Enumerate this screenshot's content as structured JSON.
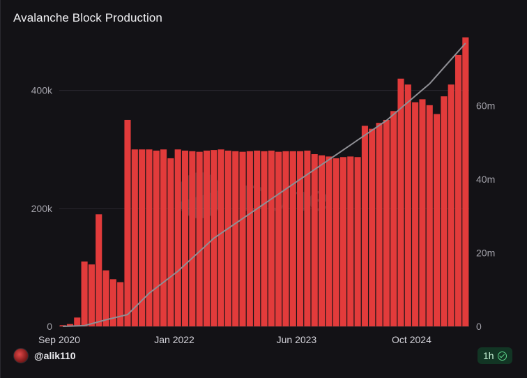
{
  "title": "Avalanche Block Production",
  "author": "@alik110",
  "refresh_badge": "1h",
  "watermark": "Dune",
  "colors": {
    "bar": "#e23b3b",
    "line": "#8f8f95",
    "grid": "#2b2a31",
    "background": "#131216"
  },
  "chart_data": {
    "type": "bar",
    "title": "Avalanche Block Production",
    "xlabel": "",
    "ylabel": "",
    "y2label": "",
    "x_tick_labels": [
      "Sep 2020",
      "Jan 2022",
      "Jun 2023",
      "Oct 2024"
    ],
    "y_left_ticks": [
      "0",
      "200k",
      "400k"
    ],
    "y_right_ticks": [
      "0",
      "20m",
      "40m",
      "60m"
    ],
    "ylim_left": [
      0,
      480000
    ],
    "ylim_right": [
      0,
      77000000
    ],
    "x_range": [
      "2020-09",
      "2025-05"
    ],
    "grid": "horizontal",
    "legend": "none",
    "series": [
      {
        "type": "bar",
        "axis": "left",
        "x": [
          "2020-09",
          "2020-10",
          "2020-11",
          "2020-12",
          "2021-01",
          "2021-02",
          "2021-03",
          "2021-04",
          "2021-05",
          "2021-06",
          "2021-07",
          "2021-08",
          "2021-09",
          "2021-10",
          "2021-11",
          "2021-12",
          "2022-01",
          "2022-02",
          "2022-03",
          "2022-04",
          "2022-05",
          "2022-06",
          "2022-07",
          "2022-08",
          "2022-09",
          "2022-10",
          "2022-11",
          "2022-12",
          "2023-01",
          "2023-02",
          "2023-03",
          "2023-04",
          "2023-05",
          "2023-06",
          "2023-07",
          "2023-08",
          "2023-09",
          "2023-10",
          "2023-11",
          "2023-12",
          "2024-01",
          "2024-02",
          "2024-03",
          "2024-04",
          "2024-05",
          "2024-06",
          "2024-07",
          "2024-08",
          "2024-09",
          "2024-10",
          "2024-11",
          "2024-12",
          "2025-01",
          "2025-02",
          "2025-03",
          "2025-04",
          "2025-05"
        ],
        "values": [
          2000,
          4000,
          15000,
          110000,
          105000,
          190000,
          95000,
          80000,
          75000,
          350000,
          300000,
          300000,
          300000,
          298000,
          300000,
          285000,
          300000,
          298000,
          297000,
          296000,
          298000,
          299000,
          300000,
          298000,
          297000,
          296000,
          297000,
          298000,
          297000,
          298000,
          296000,
          297000,
          297000,
          297000,
          298000,
          292000,
          290000,
          288000,
          285000,
          287000,
          288000,
          287000,
          340000,
          335000,
          345000,
          350000,
          365000,
          420000,
          410000,
          380000,
          385000,
          375000,
          360000,
          390000,
          410000,
          460000,
          490000
        ]
      },
      {
        "type": "line",
        "axis": "right",
        "x": [
          "2020-09",
          "2020-12",
          "2021-03",
          "2021-06",
          "2021-09",
          "2022-01",
          "2022-06",
          "2022-12",
          "2023-06",
          "2023-12",
          "2024-06",
          "2024-12",
          "2025-05"
        ],
        "values": [
          0,
          200000,
          1800000,
          3200000,
          9000000,
          15000000,
          24000000,
          32000000,
          40000000,
          48000000,
          56000000,
          66000000,
          77000000
        ]
      }
    ]
  }
}
